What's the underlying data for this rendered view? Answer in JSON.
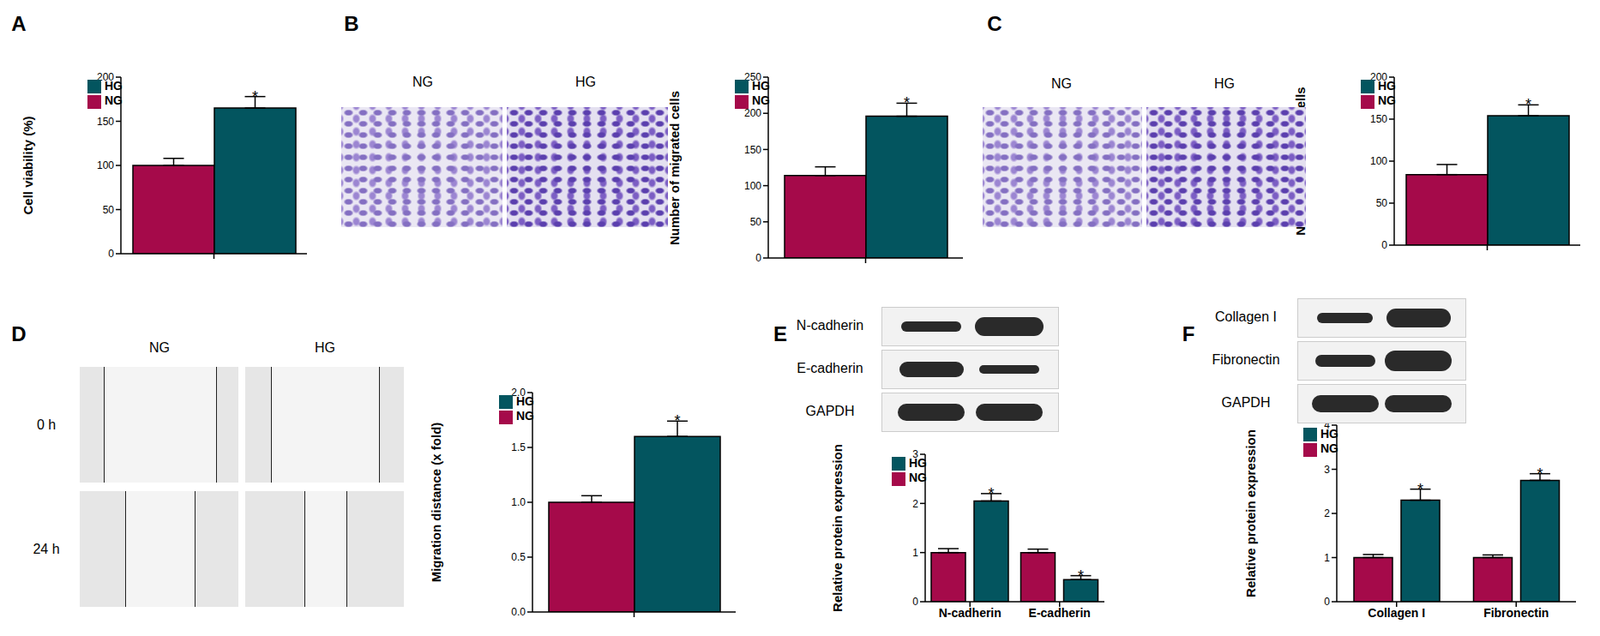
{
  "chart_data": [
    {
      "panel": "A",
      "type": "bar",
      "ylabel": "Cell viability (%)",
      "categories": [
        null
      ],
      "series": [
        {
          "name": "NG",
          "color": "#a50a4a",
          "values": [
            100
          ],
          "errors": [
            8
          ],
          "annotations": [
            null
          ]
        },
        {
          "name": "HG",
          "color": "#03555f",
          "values": [
            165
          ],
          "errors": [
            13
          ],
          "annotations": [
            "*"
          ]
        }
      ],
      "ylim": [
        0,
        200
      ],
      "yticks": [
        0,
        50,
        100,
        150,
        200
      ],
      "legend": "top-left"
    },
    {
      "panel": "B",
      "type": "bar",
      "ylabel": "Number of migrated cells",
      "image_columns": [
        "NG",
        "HG"
      ],
      "categories": [
        null
      ],
      "series": [
        {
          "name": "NG",
          "color": "#a50a4a",
          "values": [
            114
          ],
          "errors": [
            12
          ],
          "annotations": [
            null
          ]
        },
        {
          "name": "HG",
          "color": "#03555f",
          "values": [
            196
          ],
          "errors": [
            18
          ],
          "annotations": [
            "*"
          ]
        }
      ],
      "ylim": [
        0,
        250
      ],
      "yticks": [
        0,
        50,
        100,
        150,
        200,
        250
      ],
      "legend": "top-left"
    },
    {
      "panel": "C",
      "type": "bar",
      "ylabel": "Number of invaded cells",
      "image_columns": [
        "NG",
        "HG"
      ],
      "categories": [
        null
      ],
      "series": [
        {
          "name": "NG",
          "color": "#a50a4a",
          "values": [
            84
          ],
          "errors": [
            12
          ],
          "annotations": [
            null
          ]
        },
        {
          "name": "HG",
          "color": "#03555f",
          "values": [
            154
          ],
          "errors": [
            13
          ],
          "annotations": [
            "*"
          ]
        }
      ],
      "ylim": [
        0,
        200
      ],
      "yticks": [
        0,
        50,
        100,
        150,
        200
      ],
      "legend": "top-left"
    },
    {
      "panel": "D",
      "type": "bar",
      "ylabel": "Migration distance (x fold)",
      "image_columns": [
        "NG",
        "HG"
      ],
      "image_rows": [
        "0 h",
        "24 h"
      ],
      "categories": [
        null
      ],
      "series": [
        {
          "name": "NG",
          "color": "#a50a4a",
          "values": [
            1.0
          ],
          "errors": [
            0.06
          ],
          "annotations": [
            null
          ]
        },
        {
          "name": "HG",
          "color": "#03555f",
          "values": [
            1.6
          ],
          "errors": [
            0.14
          ],
          "annotations": [
            "*"
          ]
        }
      ],
      "ylim": [
        0,
        2
      ],
      "yticks": [
        {
          "value": 0,
          "label": "0.0"
        },
        0.5,
        {
          "value": 1,
          "label": "1.0"
        },
        1.5,
        {
          "value": 2,
          "label": "2.0"
        }
      ],
      "legend": "top-left"
    },
    {
      "panel": "E",
      "type": "bar",
      "ylabel": "Relative protein expression",
      "blot_labels": [
        "N-cadherin",
        "E-cadherin",
        "GAPDH"
      ],
      "categories": [
        "N-cadherin",
        "E-cadherin"
      ],
      "series": [
        {
          "name": "NG",
          "color": "#a50a4a",
          "values": [
            1.0,
            1.0
          ],
          "errors": [
            0.08,
            0.07
          ],
          "annotations": [
            null,
            null
          ]
        },
        {
          "name": "HG",
          "color": "#03555f",
          "values": [
            2.05,
            0.45
          ],
          "errors": [
            0.15,
            0.08
          ],
          "annotations": [
            "*",
            "*"
          ]
        }
      ],
      "ylim": [
        0,
        3
      ],
      "yticks": [
        0,
        1,
        2,
        3
      ],
      "legend": "top-left"
    },
    {
      "panel": "F",
      "type": "bar",
      "ylabel": "Relative protein expression",
      "blot_labels": [
        "Collagen I",
        "Fibronectin",
        "GAPDH"
      ],
      "categories": [
        "Collagen I",
        "Fibronectin"
      ],
      "series": [
        {
          "name": "NG",
          "color": "#a50a4a",
          "values": [
            1.0,
            1.0
          ],
          "errors": [
            0.07,
            0.06
          ],
          "annotations": [
            null,
            null
          ]
        },
        {
          "name": "HG",
          "color": "#03555f",
          "values": [
            2.3,
            2.75
          ],
          "errors": [
            0.25,
            0.15
          ],
          "annotations": [
            "*",
            "*"
          ]
        }
      ],
      "ylim": [
        0,
        4
      ],
      "yticks": [
        0,
        1,
        2,
        3,
        4
      ],
      "legend": "top-left"
    }
  ]
}
